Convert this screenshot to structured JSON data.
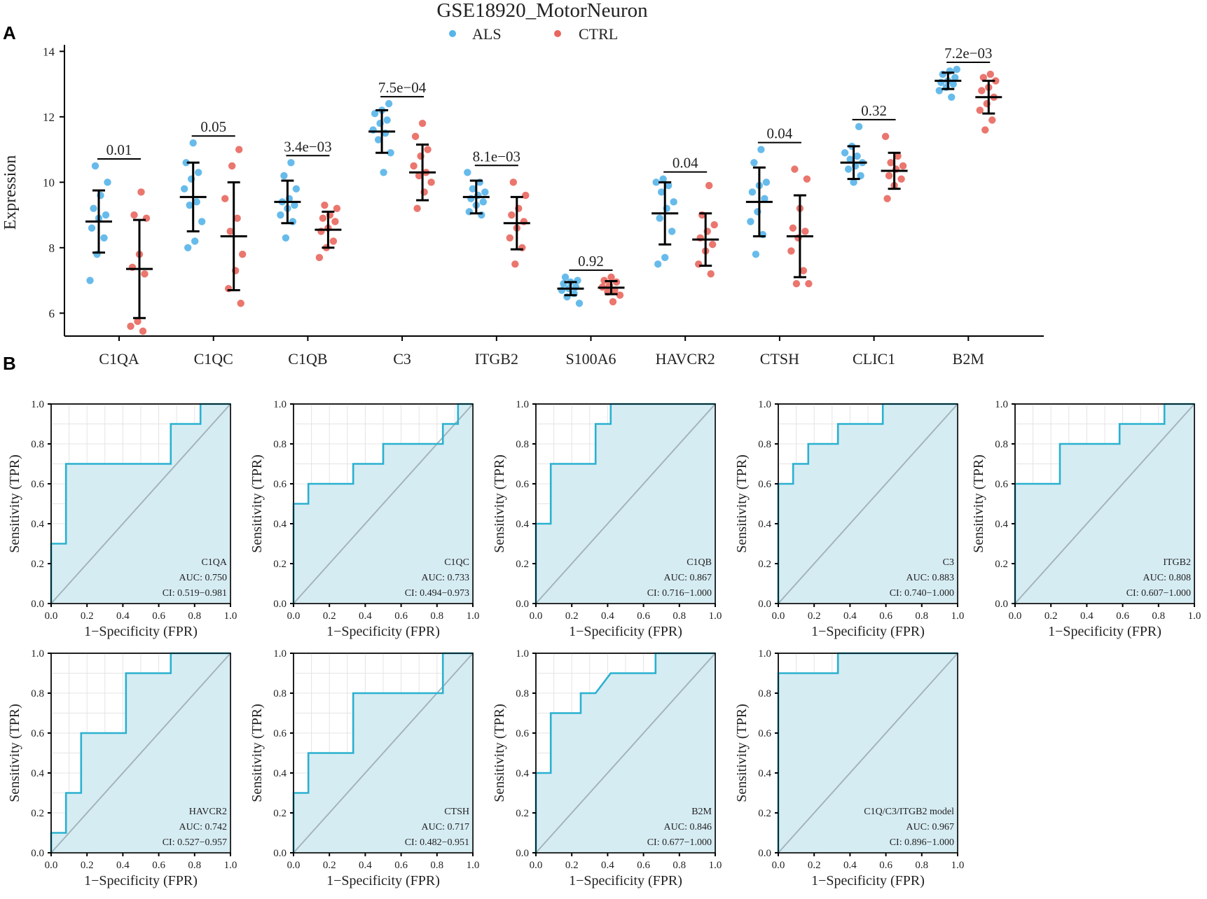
{
  "figure": {
    "panel_a_letter": "A",
    "panel_b_letter": "B"
  },
  "chart_data": [
    {
      "type": "scatter",
      "subtype": "dot-plot with mean ± SD error bars",
      "title": "GSE18920_MotorNeuron",
      "xlabel": "",
      "ylabel": "Expression",
      "ylim": [
        5.3,
        14.2
      ],
      "yticks": [
        6,
        8,
        10,
        12,
        14
      ],
      "legend": [
        {
          "name": "ALS",
          "color": "#56b4e9"
        },
        {
          "name": "CTRL",
          "color": "#e8675e"
        }
      ],
      "legend_position": "top-center",
      "categories": [
        "C1QA",
        "C1QC",
        "C1QB",
        "C3",
        "ITGB2",
        "S100A6",
        "HAVCR2",
        "CTSH",
        "CLIC1",
        "B2M"
      ],
      "p_values": [
        "0.01",
        "0.05",
        "3.4e−03",
        "7.5e−04",
        "8.1e−03",
        "0.92",
        "0.04",
        "0.04",
        "0.32",
        "7.2e−03"
      ],
      "series": [
        {
          "name": "ALS",
          "mean": [
            8.8,
            9.55,
            9.4,
            11.55,
            9.55,
            6.75,
            9.05,
            9.4,
            10.6,
            13.1
          ],
          "sd": [
            0.95,
            1.05,
            0.65,
            0.65,
            0.5,
            0.2,
            0.95,
            1.05,
            0.5,
            0.25
          ],
          "points": [
            [
              7.0,
              7.8,
              8.3,
              8.6,
              8.9,
              9.0,
              9.2,
              9.6,
              10.0,
              10.5
            ],
            [
              8.0,
              8.2,
              8.8,
              9.3,
              9.4,
              9.8,
              10.1,
              10.3,
              10.6,
              11.2
            ],
            [
              8.3,
              8.8,
              9.0,
              9.2,
              9.3,
              9.4,
              9.5,
              9.8,
              10.2,
              10.6
            ],
            [
              10.3,
              10.9,
              11.3,
              11.5,
              11.6,
              11.8,
              11.9,
              12.1,
              12.2,
              12.4
            ],
            [
              9.0,
              9.1,
              9.3,
              9.4,
              9.5,
              9.6,
              9.7,
              9.8,
              10.0,
              10.3
            ],
            [
              6.3,
              6.5,
              6.6,
              6.7,
              6.75,
              6.8,
              6.9,
              6.95,
              7.0,
              7.1
            ],
            [
              7.5,
              7.7,
              8.5,
              8.9,
              9.2,
              9.4,
              9.7,
              9.9,
              10.0,
              10.1
            ],
            [
              7.8,
              8.4,
              8.8,
              9.1,
              9.5,
              9.7,
              9.9,
              10.0,
              10.6,
              11.0
            ],
            [
              10.0,
              10.2,
              10.4,
              10.5,
              10.6,
              10.7,
              10.8,
              10.9,
              11.1,
              11.7
            ],
            [
              12.6,
              12.8,
              12.9,
              13.0,
              13.05,
              13.1,
              13.2,
              13.3,
              13.4,
              13.45
            ]
          ]
        },
        {
          "name": "CTRL",
          "mean": [
            7.35,
            8.35,
            8.55,
            10.3,
            8.75,
            6.78,
            8.25,
            8.35,
            10.35,
            12.6
          ],
          "sd": [
            1.5,
            1.65,
            0.55,
            0.85,
            0.8,
            0.2,
            0.8,
            1.25,
            0.55,
            0.5
          ],
          "points": [
            [
              5.45,
              5.6,
              5.75,
              7.2,
              7.4,
              7.8,
              8.9,
              9.0,
              9.7
            ],
            [
              6.3,
              6.75,
              7.3,
              7.8,
              8.5,
              8.9,
              9.5,
              10.5,
              11.0
            ],
            [
              7.7,
              8.0,
              8.2,
              8.5,
              8.6,
              8.8,
              8.9,
              9.0,
              9.2,
              9.3
            ],
            [
              9.2,
              9.7,
              10.0,
              10.2,
              10.3,
              10.5,
              10.8,
              11.0,
              11.4,
              11.8
            ],
            [
              7.5,
              8.0,
              8.3,
              8.6,
              8.8,
              9.0,
              9.2,
              9.6,
              10.0
            ],
            [
              6.35,
              6.55,
              6.65,
              6.7,
              6.8,
              6.85,
              6.95,
              7.0,
              7.1
            ],
            [
              7.2,
              7.5,
              7.9,
              8.1,
              8.3,
              8.5,
              8.7,
              9.0,
              9.9
            ],
            [
              6.9,
              6.9,
              7.3,
              7.9,
              8.3,
              8.5,
              8.6,
              9.2,
              10.1,
              10.4
            ],
            [
              9.5,
              9.9,
              10.1,
              10.2,
              10.4,
              10.5,
              10.6,
              10.8,
              11.4
            ],
            [
              11.6,
              11.9,
              12.2,
              12.4,
              12.6,
              12.8,
              12.9,
              13.1,
              13.2,
              13.3
            ]
          ]
        }
      ]
    },
    {
      "type": "line",
      "subtype": "ROC curves (small multiples)",
      "xlabel": "1−Specificity (FPR)",
      "ylabel": "Sensitivity (TPR)",
      "xlim": [
        0,
        1
      ],
      "ylim": [
        0,
        1
      ],
      "ticks": [
        "0.0",
        "0.2",
        "0.4",
        "0.6",
        "0.8",
        "1.0"
      ],
      "panels": [
        {
          "label": "C1QA",
          "auc": "AUC: 0.750",
          "ci": "CI: 0.519−0.981",
          "x": [
            0,
            0,
            0.083,
            0.083,
            0.667,
            0.667,
            0.833,
            0.833,
            1.0
          ],
          "y": [
            0,
            0.3,
            0.3,
            0.7,
            0.7,
            0.9,
            0.9,
            1.0,
            1.0
          ]
        },
        {
          "label": "C1QC",
          "auc": "AUC: 0.733",
          "ci": "CI: 0.494−0.973",
          "x": [
            0,
            0,
            0.083,
            0.083,
            0.333,
            0.333,
            0.5,
            0.5,
            0.833,
            0.833,
            0.917,
            0.917,
            1.0
          ],
          "y": [
            0,
            0.5,
            0.5,
            0.6,
            0.6,
            0.7,
            0.7,
            0.8,
            0.8,
            0.9,
            0.9,
            1.0,
            1.0
          ]
        },
        {
          "label": "C1QB",
          "auc": "AUC: 0.867",
          "ci": "CI: 0.716−1.000",
          "x": [
            0,
            0,
            0.083,
            0.083,
            0.333,
            0.333,
            0.417,
            0.417,
            1.0
          ],
          "y": [
            0,
            0.4,
            0.4,
            0.7,
            0.7,
            0.9,
            0.9,
            1.0,
            1.0
          ]
        },
        {
          "label": "C3",
          "auc": "AUC: 0.883",
          "ci": "CI: 0.740−1.000",
          "x": [
            0,
            0,
            0.083,
            0.083,
            0.167,
            0.167,
            0.333,
            0.333,
            0.583,
            0.583,
            1.0
          ],
          "y": [
            0,
            0.6,
            0.6,
            0.7,
            0.7,
            0.8,
            0.8,
            0.9,
            0.9,
            1.0,
            1.0
          ]
        },
        {
          "label": "ITGB2",
          "auc": "AUC: 0.808",
          "ci": "CI: 0.607−1.000",
          "x": [
            0,
            0,
            0.25,
            0.25,
            0.583,
            0.583,
            0.833,
            0.833,
            1.0
          ],
          "y": [
            0,
            0.6,
            0.6,
            0.8,
            0.8,
            0.9,
            0.9,
            1.0,
            1.0
          ]
        },
        {
          "label": "HAVCR2",
          "auc": "AUC: 0.742",
          "ci": "CI: 0.527−0.957",
          "x": [
            0,
            0,
            0.083,
            0.083,
            0.167,
            0.167,
            0.417,
            0.417,
            0.667,
            0.667,
            1.0
          ],
          "y": [
            0,
            0.1,
            0.1,
            0.3,
            0.3,
            0.6,
            0.6,
            0.9,
            0.9,
            1.0,
            1.0
          ]
        },
        {
          "label": "CTSH",
          "auc": "AUC: 0.717",
          "ci": "CI: 0.482−0.951",
          "x": [
            0,
            0,
            0.083,
            0.083,
            0.333,
            0.333,
            0.833,
            0.833,
            1.0
          ],
          "y": [
            0,
            0.3,
            0.3,
            0.5,
            0.5,
            0.8,
            0.8,
            1.0,
            1.0
          ]
        },
        {
          "label": "B2M",
          "auc": "AUC: 0.846",
          "ci": "CI: 0.677−1.000",
          "x": [
            0,
            0,
            0.083,
            0.083,
            0.25,
            0.25,
            0.333,
            0.417,
            0.667,
            0.667,
            1.0
          ],
          "y": [
            0,
            0.4,
            0.4,
            0.7,
            0.7,
            0.8,
            0.8,
            0.9,
            0.9,
            1.0,
            1.0
          ]
        },
        {
          "label": "C1Q/C3/ITGB2 model",
          "auc": "AUC: 0.967",
          "ci": "CI: 0.896−1.000",
          "x": [
            0,
            0,
            0.333,
            0.333,
            1.0
          ],
          "y": [
            0,
            0.9,
            0.9,
            1.0,
            1.0
          ]
        }
      ]
    }
  ]
}
